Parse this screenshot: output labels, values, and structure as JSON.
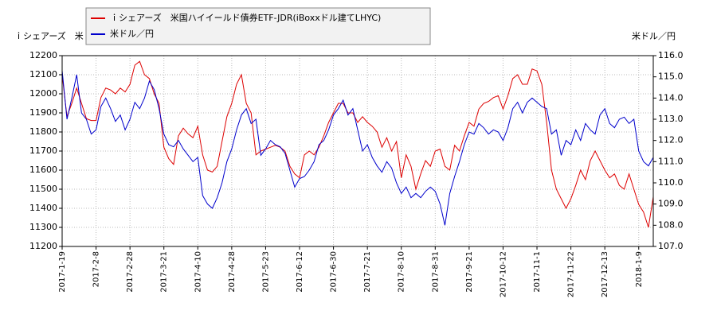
{
  "chart_data": {
    "type": "line",
    "y_label": "ｉシェアーズ　米",
    "y2_label": "米ドル／円",
    "categories": [
      "2017-1-19",
      null,
      null,
      null,
      null,
      null,
      null,
      "2017-2-8",
      null,
      null,
      null,
      null,
      null,
      null,
      "2017-2-28",
      null,
      null,
      null,
      null,
      null,
      null,
      "2017-3-21",
      null,
      null,
      null,
      null,
      null,
      null,
      "2017-4-10",
      null,
      null,
      null,
      null,
      null,
      null,
      "2017-4-28",
      null,
      null,
      null,
      null,
      null,
      null,
      "2017-5-23",
      null,
      null,
      null,
      null,
      null,
      null,
      "2017-6-12",
      null,
      null,
      null,
      null,
      null,
      null,
      "2017-6-30",
      null,
      null,
      null,
      null,
      null,
      null,
      "2017-7-21",
      null,
      null,
      null,
      null,
      null,
      null,
      "2017-8-10",
      null,
      null,
      null,
      null,
      null,
      null,
      "2017-8-31",
      null,
      null,
      null,
      null,
      null,
      null,
      "2017-9-21",
      null,
      null,
      null,
      null,
      null,
      null,
      "2017-10-12",
      null,
      null,
      null,
      null,
      null,
      null,
      "2017-11-1",
      null,
      null,
      null,
      null,
      null,
      null,
      "2017-11-22",
      null,
      null,
      null,
      null,
      null,
      null,
      "2017-12-13",
      null,
      null,
      null,
      null,
      null,
      null,
      "2018-1-9",
      null,
      null,
      null
    ],
    "series": [
      {
        "name": "ｉシェアーズ　米国ハイイールド債券ETF-JDR(iBoxxドル建てLHYC)",
        "color": "#dd0000",
        "axis": "y",
        "values": [
          12100,
          11880,
          11950,
          12030,
          11950,
          11870,
          11860,
          11860,
          11980,
          12030,
          12020,
          12000,
          12030,
          12010,
          12050,
          12150,
          12170,
          12100,
          12080,
          12000,
          11950,
          11720,
          11660,
          11630,
          11780,
          11820,
          11790,
          11770,
          11830,
          11680,
          11600,
          11590,
          11620,
          11750,
          11880,
          11950,
          12050,
          12100,
          11950,
          11900,
          11680,
          11700,
          11710,
          11720,
          11730,
          11720,
          11700,
          11620,
          11580,
          11560,
          11680,
          11700,
          11680,
          11720,
          11780,
          11850,
          11900,
          11950,
          11950,
          11900,
          11900,
          11850,
          11880,
          11850,
          11830,
          11800,
          11720,
          11770,
          11700,
          11750,
          11560,
          11680,
          11620,
          11500,
          11580,
          11650,
          11620,
          11700,
          11710,
          11620,
          11600,
          11730,
          11700,
          11780,
          11850,
          11830,
          11920,
          11950,
          11960,
          11980,
          11990,
          11920,
          11990,
          12080,
          12100,
          12050,
          12050,
          12130,
          12120,
          12050,
          11850,
          11600,
          11500,
          11450,
          11400,
          11450,
          11520,
          11600,
          11550,
          11650,
          11700,
          11650,
          11600,
          11560,
          11580,
          11520,
          11500,
          11580,
          11500,
          11420,
          11380,
          11300,
          11460
        ]
      },
      {
        "name": "米ドル／円",
        "color": "#0000cc",
        "axis": "y2",
        "values": [
          115.3,
          113.0,
          114.0,
          115.1,
          113.3,
          113.0,
          112.3,
          112.5,
          113.6,
          114.0,
          113.5,
          112.9,
          113.2,
          112.5,
          113.0,
          113.8,
          113.5,
          114.0,
          114.8,
          114.4,
          113.5,
          112.3,
          111.8,
          111.7,
          112.0,
          111.6,
          111.3,
          111.0,
          111.2,
          109.4,
          109.0,
          108.8,
          109.3,
          110.0,
          111.0,
          111.6,
          112.5,
          113.2,
          113.5,
          112.8,
          113.0,
          111.3,
          111.6,
          112.0,
          111.8,
          111.7,
          111.4,
          110.6,
          109.8,
          110.2,
          110.3,
          110.6,
          111.0,
          111.8,
          112.0,
          112.5,
          113.2,
          113.5,
          113.9,
          113.2,
          113.5,
          112.5,
          111.5,
          111.8,
          111.2,
          110.8,
          110.5,
          111.0,
          110.7,
          110.0,
          109.5,
          109.8,
          109.3,
          109.5,
          109.3,
          109.6,
          109.8,
          109.6,
          109.0,
          108.0,
          109.5,
          110.3,
          111.0,
          111.8,
          112.4,
          112.3,
          112.8,
          112.6,
          112.3,
          112.5,
          112.4,
          112.0,
          112.6,
          113.5,
          113.8,
          113.3,
          113.8,
          114.0,
          113.8,
          113.6,
          113.5,
          112.3,
          112.5,
          111.3,
          112.0,
          111.8,
          112.5,
          112.0,
          112.8,
          112.5,
          112.3,
          113.2,
          113.5,
          112.8,
          112.6,
          113.0,
          113.1,
          112.8,
          113.0,
          111.5,
          111.0,
          110.8,
          111.2
        ]
      }
    ],
    "ylim": [
      11200,
      12200
    ],
    "yticks": [
      11200,
      11300,
      11400,
      11500,
      11600,
      11700,
      11800,
      11900,
      12000,
      12100,
      12200
    ],
    "y2lim": [
      107,
      116
    ],
    "y2ticks": [
      {
        "value": 107,
        "label": "107.0"
      },
      {
        "value": 108,
        "label": "108.0"
      },
      {
        "value": 109,
        "label": "109.0"
      },
      {
        "value": 110,
        "label": "110.0"
      },
      {
        "value": 111,
        "label": "111.0"
      },
      {
        "value": 112,
        "label": "112.0"
      },
      {
        "value": 113,
        "label": "113.0"
      },
      {
        "value": 114,
        "label": "114.0"
      },
      {
        "value": 115,
        "label": "115.0"
      },
      {
        "value": 116,
        "label": "116.0"
      }
    ],
    "grid": true,
    "legend": "top-left"
  }
}
